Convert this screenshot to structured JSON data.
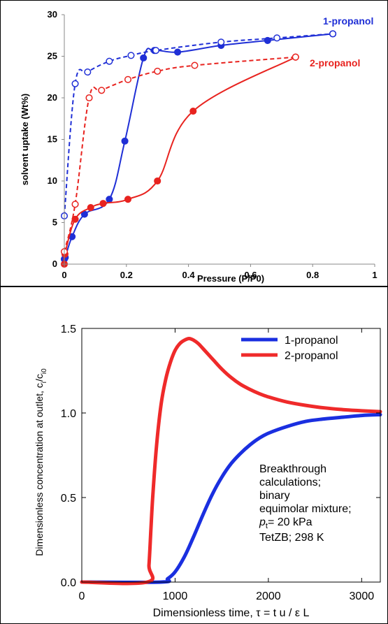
{
  "chart_data": [
    {
      "type": "line",
      "title": "",
      "xlabel": "Pressure (P/P0)",
      "ylabel": "solvent uptake (Wt%)",
      "xlim": [
        0,
        1
      ],
      "ylim": [
        0,
        30
      ],
      "xticks": [
        "0",
        "0.2",
        "0.4",
        "0.6",
        "0.8",
        "1"
      ],
      "xtick_values": [
        0,
        0.2,
        0.4,
        0.6,
        0.8,
        1
      ],
      "yticks": [
        "0",
        "5",
        "10",
        "15",
        "20",
        "25",
        "30"
      ],
      "ytick_values": [
        0,
        5,
        10,
        15,
        20,
        25,
        30
      ],
      "grid": false,
      "annotations": [
        {
          "text": "1-propanol",
          "color": "#1f2fd6"
        },
        {
          "text": "2-propanol",
          "color": "#e8231f"
        }
      ],
      "series": [
        {
          "name": "1-propanol",
          "branch": "adsorption",
          "color": "#1f2fd6",
          "line": "solid",
          "marker": "filled-circle",
          "x": [
            0.0,
            0.003,
            0.025,
            0.065,
            0.145,
            0.195,
            0.255,
            0.29,
            0.365,
            0.505,
            0.655,
            0.865
          ],
          "y": [
            0.6,
            0.8,
            3.3,
            6.0,
            7.8,
            14.8,
            24.8,
            25.7,
            25.5,
            26.3,
            26.9,
            27.7
          ]
        },
        {
          "name": "1-propanol",
          "branch": "desorption",
          "color": "#1f2fd6",
          "line": "dashed",
          "marker": "open-circle",
          "x": [
            0.0,
            0.035,
            0.075,
            0.145,
            0.215,
            0.295,
            0.505,
            0.685,
            0.865
          ],
          "y": [
            5.8,
            21.7,
            23.1,
            24.4,
            25.1,
            25.7,
            26.7,
            27.2,
            27.7
          ]
        },
        {
          "name": "2-propanol",
          "branch": "adsorption",
          "color": "#e8231f",
          "line": "solid",
          "marker": "filled-circle",
          "x": [
            0.0,
            0.002,
            0.035,
            0.085,
            0.125,
            0.205,
            0.3,
            0.415,
            0.745
          ],
          "y": [
            0.0,
            1.2,
            5.4,
            6.8,
            7.3,
            7.8,
            10.0,
            18.4,
            24.9
          ]
        },
        {
          "name": "2-propanol",
          "branch": "desorption",
          "color": "#e8231f",
          "line": "dashed",
          "marker": "open-circle",
          "x": [
            0.0,
            0.035,
            0.08,
            0.12,
            0.205,
            0.3,
            0.42,
            0.745
          ],
          "y": [
            1.5,
            7.2,
            20.0,
            20.9,
            22.2,
            23.2,
            23.9,
            24.9
          ]
        }
      ]
    },
    {
      "type": "line",
      "title": "",
      "xlabel": "Dimensionless time, τ = t u / ε L",
      "ylabel": "Dimensionless concentration at outlet, c",
      "ylabel_sub1": "i",
      "ylabel_mid": "/c",
      "ylabel_sub2": "i0",
      "xlim": [
        0,
        3200
      ],
      "ylim": [
        0,
        1.5
      ],
      "xticks": [
        "0",
        "1000",
        "2000",
        "3000"
      ],
      "xtick_values": [
        0,
        1000,
        2000,
        3000
      ],
      "yticks": [
        "0.0",
        "0.5",
        "1.0",
        "1.5"
      ],
      "ytick_values": [
        0,
        0.5,
        1.0,
        1.5
      ],
      "grid": false,
      "legend": {
        "placement": "top-right",
        "entries": [
          {
            "label": "1-propanol",
            "color": "#1a2fe0"
          },
          {
            "label": "2-propanol",
            "color": "#ef2a2a"
          }
        ]
      },
      "annotation_lines": [
        "Breakthrough",
        "calculations;",
        "binary",
        "equimolar mixture;"
      ],
      "annotation_p_main": "p",
      "annotation_p_sub": "t",
      "annotation_p_rest": "= 20 kPa",
      "annotation_last": "TetZB; 298 K",
      "series": [
        {
          "name": "1-propanol",
          "color": "#1a2fe0",
          "x": [
            0,
            850,
            920,
            1000,
            1100,
            1200,
            1300,
            1400,
            1500,
            1600,
            1700,
            1800,
            1900,
            2000,
            2200,
            2400,
            2600,
            2800,
            3000,
            3200
          ],
          "y": [
            0.0,
            0.0,
            0.02,
            0.06,
            0.15,
            0.27,
            0.4,
            0.52,
            0.62,
            0.7,
            0.76,
            0.81,
            0.85,
            0.88,
            0.92,
            0.95,
            0.965,
            0.975,
            0.985,
            0.99
          ]
        },
        {
          "name": "2-propanol",
          "color": "#ef2a2a",
          "x": [
            0,
            700,
            720,
            740,
            760,
            800,
            850,
            900,
            950,
            1000,
            1050,
            1100,
            1150,
            1200,
            1250,
            1300,
            1400,
            1500,
            1600,
            1700,
            1800,
            1900,
            2000,
            2200,
            2400,
            2600,
            2800,
            3000,
            3200
          ],
          "y": [
            0.0,
            0.0,
            0.1,
            0.3,
            0.5,
            0.8,
            1.05,
            1.2,
            1.3,
            1.37,
            1.41,
            1.43,
            1.44,
            1.43,
            1.41,
            1.38,
            1.32,
            1.26,
            1.21,
            1.17,
            1.14,
            1.115,
            1.095,
            1.065,
            1.045,
            1.03,
            1.02,
            1.013,
            1.008
          ]
        }
      ]
    }
  ]
}
